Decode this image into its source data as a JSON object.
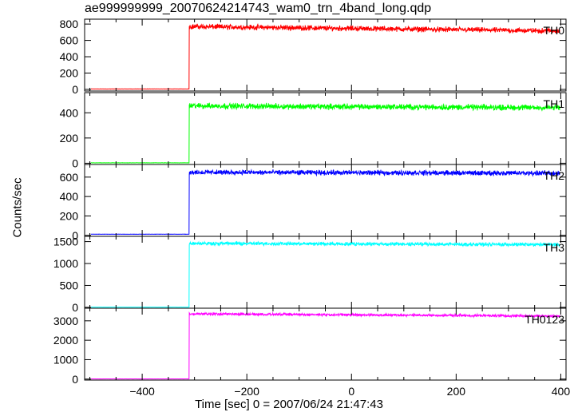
{
  "title": "ae999999999_20070624214743_wam0_trn_4band_long.qdp",
  "xlabel": "Time [sec] 0 = 2007/06/24 21:47:43",
  "ylabel": "Counts/sec",
  "chart_data": {
    "type": "line",
    "x_range": [
      -510,
      410
    ],
    "x_ticks": [
      -400,
      -200,
      0,
      200,
      400
    ],
    "onset_time": -310,
    "panels": [
      {
        "name": "TH0",
        "color": "#ff0000",
        "ylim": [
          -20,
          860
        ],
        "yticks": [
          0,
          200,
          400,
          600,
          800
        ],
        "pre_level": 5,
        "post_level": 770,
        "end_level": 715,
        "noise": 28
      },
      {
        "name": "TH1",
        "color": "#00ff00",
        "ylim": [
          -10,
          560
        ],
        "yticks": [
          0,
          200,
          400
        ],
        "pre_level": 3,
        "post_level": 455,
        "end_level": 440,
        "noise": 20
      },
      {
        "name": "TH2",
        "color": "#0000ff",
        "ylim": [
          -10,
          730
        ],
        "yticks": [
          0,
          200,
          400,
          600
        ],
        "pre_level": 12,
        "post_level": 650,
        "end_level": 640,
        "noise": 22
      },
      {
        "name": "TH3",
        "color": "#00ffff",
        "ylim": [
          -20,
          1620
        ],
        "yticks": [
          0,
          500,
          1000,
          1500
        ],
        "pre_level": 5,
        "post_level": 1460,
        "end_level": 1430,
        "noise": 35
      },
      {
        "name": "TH0123",
        "color": "#ff00ff",
        "ylim": [
          -50,
          3650
        ],
        "yticks": [
          0,
          1000,
          2000,
          3000
        ],
        "pre_level": 10,
        "post_level": 3360,
        "end_level": 3240,
        "noise": 55
      }
    ]
  }
}
